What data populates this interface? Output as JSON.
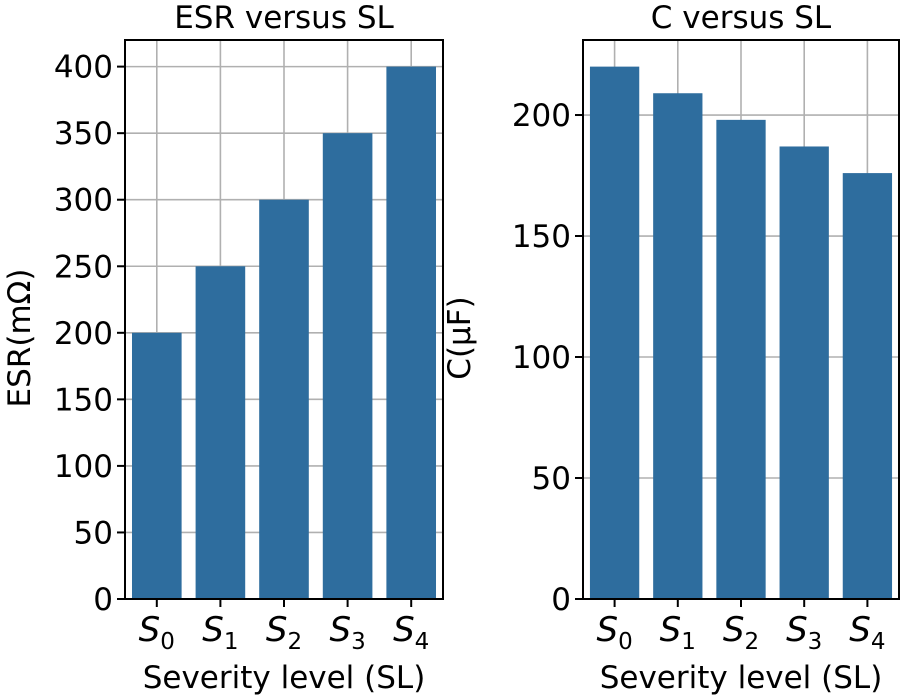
{
  "colors": {
    "bar": "#2e6d9e",
    "grid": "#b0b0b0",
    "axis": "#000000"
  },
  "chart_data": [
    {
      "type": "bar",
      "title": "ESR versus SL",
      "xlabel": "Severity level (SL)",
      "ylabel": "ESR(mΩ)",
      "categories": [
        {
          "base": "S",
          "sub": "0"
        },
        {
          "base": "S",
          "sub": "1"
        },
        {
          "base": "S",
          "sub": "2"
        },
        {
          "base": "S",
          "sub": "3"
        },
        {
          "base": "S",
          "sub": "4"
        }
      ],
      "values": [
        200,
        250,
        300,
        350,
        400
      ],
      "ylim": [
        0,
        420
      ],
      "yticks": [
        0,
        50,
        100,
        150,
        200,
        250,
        300,
        350,
        400
      ],
      "grid": true
    },
    {
      "type": "bar",
      "title": "C versus SL",
      "xlabel": "Severity level (SL)",
      "ylabel": "C(µF)",
      "categories": [
        {
          "base": "S",
          "sub": "0"
        },
        {
          "base": "S",
          "sub": "1"
        },
        {
          "base": "S",
          "sub": "2"
        },
        {
          "base": "S",
          "sub": "3"
        },
        {
          "base": "S",
          "sub": "4"
        }
      ],
      "values": [
        220,
        209,
        198,
        187,
        176
      ],
      "ylim": [
        0,
        231
      ],
      "yticks": [
        0,
        50,
        100,
        150,
        200
      ],
      "grid": true
    }
  ]
}
